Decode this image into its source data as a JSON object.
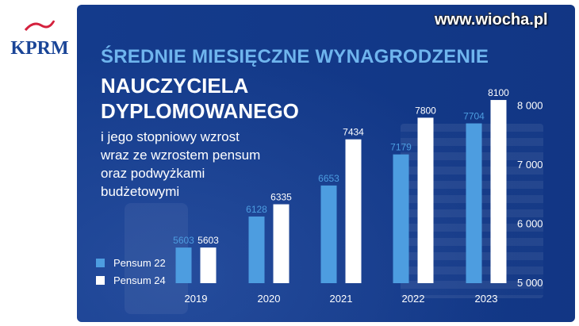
{
  "logo": {
    "text": "KPRM"
  },
  "watermark": "www.wiocha.pl",
  "headline": {
    "line1": "ŚREDNIE MIESIĘCZNE WYNAGRODZENIE",
    "line2": "NAUCZYCIELA",
    "line3": "DYPLOMOWANEGO",
    "sub": [
      "i jego stopniowy wzrost",
      "wraz ze wzrostem pensum",
      "oraz podwyżkami",
      "budżetowymi"
    ]
  },
  "colors": {
    "background": "#143b8c",
    "accent": "#6fb5ee",
    "pensum22": "#4d9de0",
    "pensum24": "#ffffff"
  },
  "chart_data": {
    "type": "bar",
    "categories": [
      "2019",
      "2020",
      "2021",
      "2022",
      "2023"
    ],
    "series": [
      {
        "name": "Pensum 22",
        "values": [
          5603,
          6128,
          6653,
          7179,
          7704
        ]
      },
      {
        "name": "Pensum 24",
        "values": [
          5603,
          6335,
          7434,
          7800,
          8100
        ]
      }
    ],
    "y_ticks": [
      5000,
      6000,
      7000,
      8000
    ],
    "y_tick_labels": [
      "5 000",
      "6 000",
      "7 000",
      "8 000"
    ],
    "ylim": [
      5000,
      8200
    ],
    "y_axis_side": "right",
    "grid": false,
    "legend_position": "bottom-left"
  }
}
